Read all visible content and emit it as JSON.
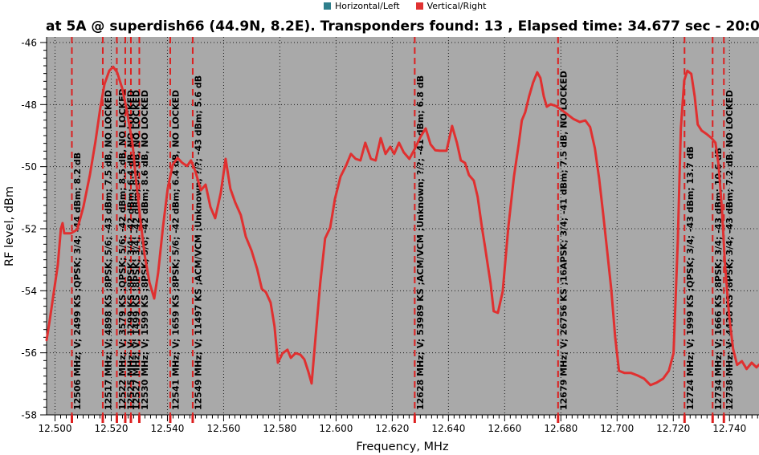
{
  "chart_data": {
    "type": "line",
    "title": "at 5A @ superdish66 (44.9N, 8.2E). Transponders found: 13 , Elapsed time: 34.677 sec - 20:0",
    "xlabel": "Frequency, MHz",
    "ylabel": "RF level, dBm",
    "x_ticks": [
      "12.500",
      "12.520",
      "12.540",
      "12.560",
      "12.580",
      "12.600",
      "12.620",
      "12.640",
      "12.660",
      "12.680",
      "12.700",
      "12.720",
      "12.740"
    ],
    "y_ticks": [
      "-46",
      "-48",
      "-50",
      "-52",
      "-54",
      "-56",
      "-58"
    ],
    "x_range_ghz": [
      12.497,
      12.7505
    ],
    "y_range_dbm": [
      -58,
      -46
    ],
    "x_minor_step_mhz": 2,
    "y_minor_step_db": 0.25,
    "grid": "dotted",
    "legend": [
      {
        "label": "Horizontal/Left",
        "color": "#2e7f8c"
      },
      {
        "label": "Vertical/Right",
        "color": "#e03232"
      }
    ],
    "transponders": [
      {
        "freq_mhz": 12506,
        "label": "12506 MHz; V; 2499 KS ;QPSK; 3/4; -44 dBm; 8.2 dB"
      },
      {
        "freq_mhz": 12517,
        "label": "12517 MHz; V; 4898 KS ;8PSK; 5/6; -43 dBm; 7.5 dB, NO LOCKED"
      },
      {
        "freq_mhz": 12522,
        "label": "12522 MHz; V; 3579 KS ;QPSK; 5/6; -42 dBm; 8.5 dB, NO LOCKED"
      },
      {
        "freq_mhz": 12525,
        "label": "12525 MHz; V; 1299 KS ;8PSK; 3/4; -42 dBm; 6.4 dB, NO LOCKED"
      },
      {
        "freq_mhz": 12527,
        "label": "12527 MHz; V; 1499 KS ;8PSK; 3/4; -42 dBm; 8.4 dB, NO LOCKED"
      },
      {
        "freq_mhz": 12530,
        "label": "12530 MHz; V; 1599 KS ;8PSK; 5/6; -42 dBm; 8.6 dB, NO LOCKED"
      },
      {
        "freq_mhz": 12541,
        "label": "12541 MHz; V; 1659 KS ;8PSK; 5/6; -42 dBm; 6.4 dB, NO LOCKED"
      },
      {
        "freq_mhz": 12549,
        "label": "12549 MHz; V; 11497 KS ;ACM/VCM ;Unknown; ?/?; -43 dBm; 5.6 dB"
      },
      {
        "freq_mhz": 12628,
        "label": "12628 MHz; V; 53989 KS ;ACM/VCM ;Unknown; ?/?; -41 dBm; 6.8 dB"
      },
      {
        "freq_mhz": 12679,
        "label": "12679 MHz; V; 26756 KS ;16APSK; 3/4; -41 dBm; 7.5 dB, NO LOCKED"
      },
      {
        "freq_mhz": 12724,
        "label": "12724 MHz; V; 1999 KS ;QPSK; 3/4; -43 dBm; 13.7 dB"
      },
      {
        "freq_mhz": 12734,
        "label": "12734 MHz; V; 1666 KS ;8PSK; 3/4; -43 dBm; 10.6 dB"
      },
      {
        "freq_mhz": 12738,
        "label": "12738 MHz; V; 4438 KS ;8PSK; 3/4; -43 dBm; 7.2 dB, NO LOCKED"
      }
    ],
    "series": [
      {
        "name": "Vertical/Right",
        "color": "#e03030",
        "points_mhz_dbm": [
          [
            12497.0,
            -55.59
          ],
          [
            12498.1,
            -54.97
          ],
          [
            12501.0,
            -53.16
          ],
          [
            12502.1,
            -52.0
          ],
          [
            12502.7,
            -51.82
          ],
          [
            12503.3,
            -52.15
          ],
          [
            12505.6,
            -52.15
          ],
          [
            12507.9,
            -52.03
          ],
          [
            12510.1,
            -51.3
          ],
          [
            12512.4,
            -50.27
          ],
          [
            12514.4,
            -49.18
          ],
          [
            12516.1,
            -48.12
          ],
          [
            12517.6,
            -47.34
          ],
          [
            12519.3,
            -46.91
          ],
          [
            12520.7,
            -46.78
          ],
          [
            12522.1,
            -46.96
          ],
          [
            12523.9,
            -47.47
          ],
          [
            12525.3,
            -48.07
          ],
          [
            12526.4,
            -48.64
          ],
          [
            12527.6,
            -49.28
          ],
          [
            12528.7,
            -50.32
          ],
          [
            12530.1,
            -51.48
          ],
          [
            12531.9,
            -52.85
          ],
          [
            12533.6,
            -53.73
          ],
          [
            12535.3,
            -54.25
          ],
          [
            12536.7,
            -53.42
          ],
          [
            12538.4,
            -51.95
          ],
          [
            12540.1,
            -50.71
          ],
          [
            12541.9,
            -49.93
          ],
          [
            12543.6,
            -49.72
          ],
          [
            12545.3,
            -49.88
          ],
          [
            12547.0,
            -49.98
          ],
          [
            12548.4,
            -49.8
          ],
          [
            12549.9,
            -50.14
          ],
          [
            12551.9,
            -50.76
          ],
          [
            12553.6,
            -50.58
          ],
          [
            12555.3,
            -51.3
          ],
          [
            12557.0,
            -51.66
          ],
          [
            12559.0,
            -50.84
          ],
          [
            12560.7,
            -49.75
          ],
          [
            12562.4,
            -50.71
          ],
          [
            12564.1,
            -51.15
          ],
          [
            12566.1,
            -51.56
          ],
          [
            12567.9,
            -52.26
          ],
          [
            12569.9,
            -52.7
          ],
          [
            12571.9,
            -53.29
          ],
          [
            12573.6,
            -53.94
          ],
          [
            12575.0,
            -54.04
          ],
          [
            12576.7,
            -54.38
          ],
          [
            12578.1,
            -55.15
          ],
          [
            12579.3,
            -56.32
          ],
          [
            12581.0,
            -56.01
          ],
          [
            12582.7,
            -55.9
          ],
          [
            12583.9,
            -56.16
          ],
          [
            12585.6,
            -56.01
          ],
          [
            12587.3,
            -56.06
          ],
          [
            12588.7,
            -56.21
          ],
          [
            12590.1,
            -56.6
          ],
          [
            12591.3,
            -56.99
          ],
          [
            12592.7,
            -55.49
          ],
          [
            12594.4,
            -53.73
          ],
          [
            12596.1,
            -52.31
          ],
          [
            12597.9,
            -51.97
          ],
          [
            12599.6,
            -51.04
          ],
          [
            12601.6,
            -50.32
          ],
          [
            12603.6,
            -49.96
          ],
          [
            12605.3,
            -49.59
          ],
          [
            12607.0,
            -49.75
          ],
          [
            12608.7,
            -49.8
          ],
          [
            12610.4,
            -49.23
          ],
          [
            12612.4,
            -49.75
          ],
          [
            12614.1,
            -49.8
          ],
          [
            12615.9,
            -49.08
          ],
          [
            12617.6,
            -49.59
          ],
          [
            12619.3,
            -49.36
          ],
          [
            12620.7,
            -49.59
          ],
          [
            12622.4,
            -49.23
          ],
          [
            12624.1,
            -49.54
          ],
          [
            12626.1,
            -49.75
          ],
          [
            12628.1,
            -49.41
          ],
          [
            12630.1,
            -49.03
          ],
          [
            12631.9,
            -48.77
          ],
          [
            12633.6,
            -49.28
          ],
          [
            12635.3,
            -49.47
          ],
          [
            12637.0,
            -49.49
          ],
          [
            12639.3,
            -49.49
          ],
          [
            12641.3,
            -48.69
          ],
          [
            12643.0,
            -49.23
          ],
          [
            12644.4,
            -49.8
          ],
          [
            12645.9,
            -49.88
          ],
          [
            12647.3,
            -50.27
          ],
          [
            12649.0,
            -50.45
          ],
          [
            12650.4,
            -50.97
          ],
          [
            12651.9,
            -51.95
          ],
          [
            12653.0,
            -52.57
          ],
          [
            12654.1,
            -53.24
          ],
          [
            12655.0,
            -53.76
          ],
          [
            12656.1,
            -54.66
          ],
          [
            12657.6,
            -54.71
          ],
          [
            12659.3,
            -54.02
          ],
          [
            12661.3,
            -51.95
          ],
          [
            12663.3,
            -50.32
          ],
          [
            12665.0,
            -49.28
          ],
          [
            12666.1,
            -48.51
          ],
          [
            12667.3,
            -48.25
          ],
          [
            12668.7,
            -47.73
          ],
          [
            12670.1,
            -47.29
          ],
          [
            12671.6,
            -46.96
          ],
          [
            12672.7,
            -47.14
          ],
          [
            12673.9,
            -47.73
          ],
          [
            12675.0,
            -48.07
          ],
          [
            12676.4,
            -47.99
          ],
          [
            12678.1,
            -48.04
          ],
          [
            12679.9,
            -48.15
          ],
          [
            12682.1,
            -48.3
          ],
          [
            12684.4,
            -48.46
          ],
          [
            12686.7,
            -48.56
          ],
          [
            12688.7,
            -48.51
          ],
          [
            12690.4,
            -48.72
          ],
          [
            12692.1,
            -49.41
          ],
          [
            12693.6,
            -50.37
          ],
          [
            12695.0,
            -51.48
          ],
          [
            12696.4,
            -52.65
          ],
          [
            12697.9,
            -53.94
          ],
          [
            12699.3,
            -55.49
          ],
          [
            12700.7,
            -56.58
          ],
          [
            12702.7,
            -56.65
          ],
          [
            12705.0,
            -56.65
          ],
          [
            12707.3,
            -56.73
          ],
          [
            12709.6,
            -56.83
          ],
          [
            12711.9,
            -57.04
          ],
          [
            12714.1,
            -56.96
          ],
          [
            12716.4,
            -56.83
          ],
          [
            12718.4,
            -56.58
          ],
          [
            12720.1,
            -56.01
          ],
          [
            12721.6,
            -52.39
          ],
          [
            12722.7,
            -48.77
          ],
          [
            12723.9,
            -47.22
          ],
          [
            12725.0,
            -46.91
          ],
          [
            12726.4,
            -47.01
          ],
          [
            12727.6,
            -47.73
          ],
          [
            12728.7,
            -48.64
          ],
          [
            12730.1,
            -48.84
          ],
          [
            12731.9,
            -48.95
          ],
          [
            12733.6,
            -49.08
          ],
          [
            12735.0,
            -49.23
          ],
          [
            12736.1,
            -49.93
          ],
          [
            12737.3,
            -51.35
          ],
          [
            12738.4,
            -53.16
          ],
          [
            12739.9,
            -54.84
          ],
          [
            12741.3,
            -55.88
          ],
          [
            12742.7,
            -56.39
          ],
          [
            12744.4,
            -56.27
          ],
          [
            12746.1,
            -56.52
          ],
          [
            12747.9,
            -56.32
          ],
          [
            12749.6,
            -56.47
          ],
          [
            12750.4,
            -56.39
          ]
        ]
      }
    ]
  },
  "colors": {
    "page_bg": "#ffffff",
    "plot_bg": "#a9a9a9",
    "grid": "#1a1a1a",
    "axis": "#000000",
    "marker_line": "#dd2020",
    "trace": "#e03030",
    "text": "#000000"
  }
}
